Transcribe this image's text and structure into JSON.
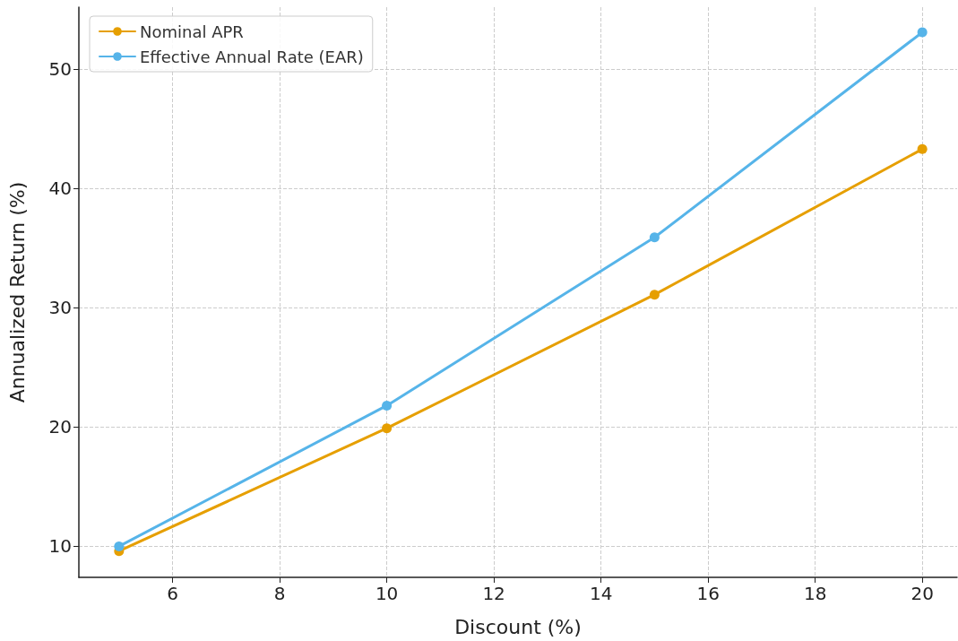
{
  "chart_data": {
    "type": "line",
    "xlabel": "Discount (%)",
    "ylabel": "Annualized Return (%)",
    "x": [
      5,
      10,
      15,
      20
    ],
    "series": [
      {
        "name": "Nominal APR",
        "color": "#e69f00",
        "values": [
          9.6,
          19.9,
          31.1,
          43.3
        ]
      },
      {
        "name": "Effective Annual Rate (EAR)",
        "color": "#56b4e9",
        "values": [
          10.0,
          21.8,
          35.9,
          53.1
        ]
      }
    ],
    "xlim": [
      4.25,
      20.65
    ],
    "xticks": [
      6,
      8,
      10,
      12,
      14,
      16,
      18,
      20
    ],
    "ylim": [
      7.4,
      55.2
    ],
    "yticks": [
      10,
      20,
      30,
      40,
      50
    ],
    "grid": true,
    "legend": "top left",
    "marker": "circle",
    "line_style": "solid"
  }
}
